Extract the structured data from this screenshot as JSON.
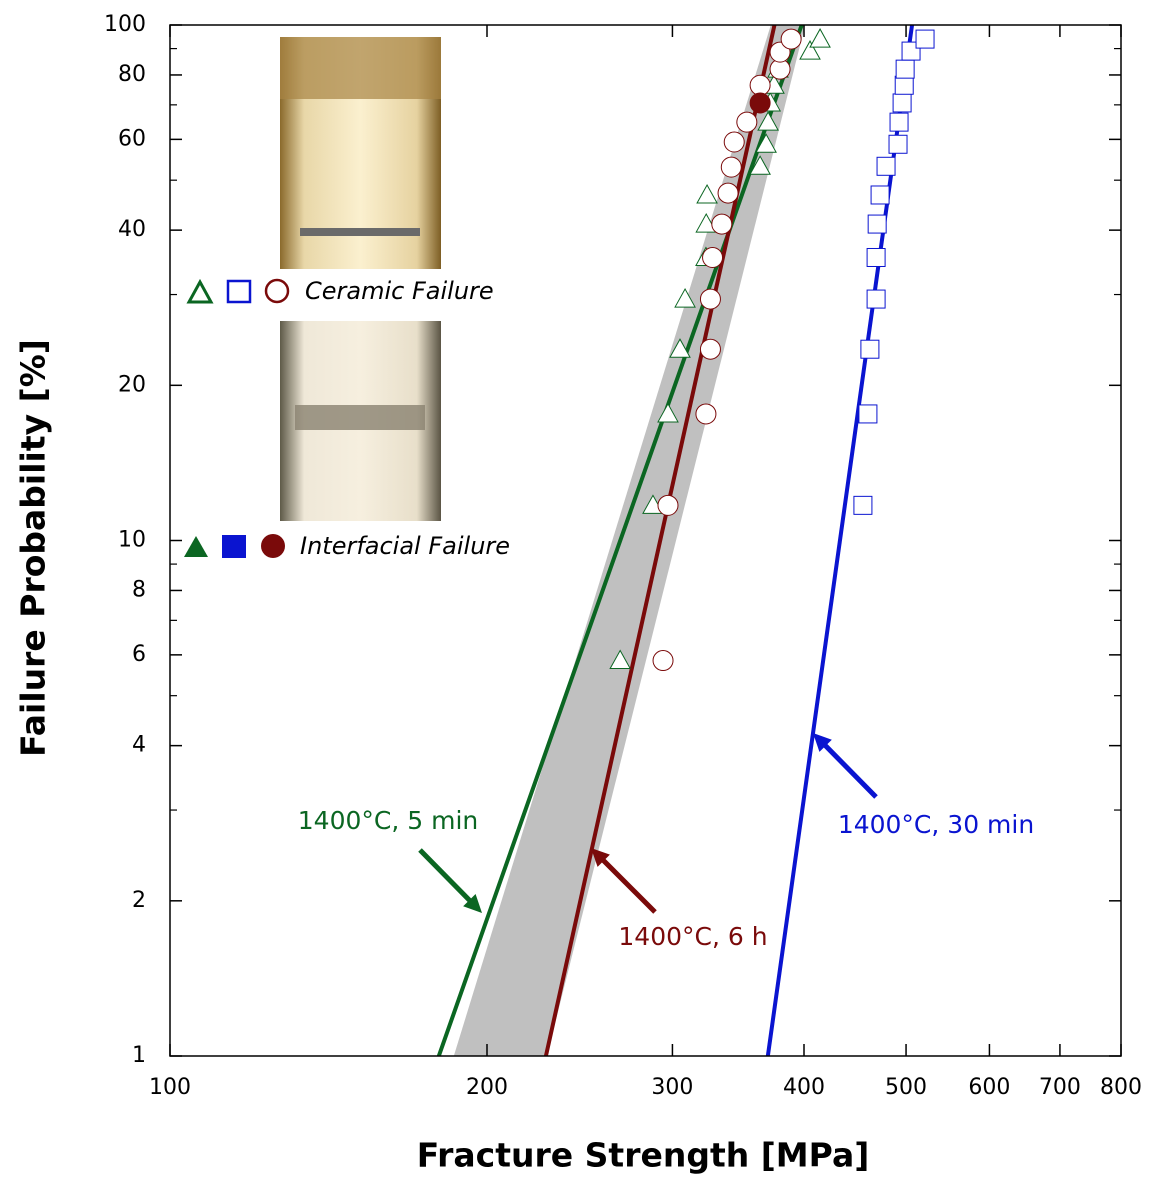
{
  "chart_data": {
    "type": "scatter",
    "x_label": "Fracture Strength [MPa]",
    "y_label": "Failure Probability [%]",
    "xscale": "log",
    "yscale": "log",
    "xlim": [
      100,
      800
    ],
    "ylim": [
      1,
      100
    ],
    "xticks": [
      100,
      200,
      300,
      400,
      500,
      600,
      700,
      800
    ],
    "yticks": [
      1,
      2,
      4,
      6,
      8,
      10,
      20,
      40,
      60,
      80,
      100
    ],
    "yminorticks": [
      3,
      5,
      7,
      9,
      30,
      50,
      70,
      90
    ],
    "band": {
      "color": "#c0c0c0",
      "x": [
        186,
        372,
        401,
        228
      ],
      "values": [
        1,
        100,
        100,
        1
      ]
    },
    "fits": [
      {
        "color": "#0b6622",
        "x": [
          180,
          398
        ],
        "values": [
          1,
          100
        ]
      },
      {
        "color": "#7a0a0a",
        "x": [
          227.5,
          375
        ],
        "values": [
          1,
          100
        ]
      },
      {
        "color": "#0a14d0",
        "x": [
          369.6,
          506.6
        ],
        "values": [
          1,
          100
        ]
      }
    ],
    "series": [
      {
        "marker": "triangle",
        "filled": false,
        "color": "#0b6622",
        "x": [
          267.6,
          287.5,
          297.1,
          305,
          308.4,
          322.8,
          323,
          323.6,
          363.4,
          368.2,
          369.8,
          371.5,
          374.6,
          377.9,
          405.3,
          414.3
        ],
        "values": [
          5.85,
          11.7,
          17.6,
          23.5,
          29.4,
          35.4,
          41.1,
          46.8,
          53.2,
          58.7,
          64.8,
          70.6,
          76.4,
          82.1,
          89.0,
          93.9
        ]
      },
      {
        "marker": "circle",
        "filled": false,
        "color": "#7a0a0a",
        "x": [
          293.9,
          297.1,
          322.8,
          326,
          326,
          327.5,
          334.2,
          338.8,
          341.2,
          343.4,
          353,
          363.4,
          379.6,
          379.6,
          388.9
        ],
        "values": [
          5.85,
          11.7,
          17.6,
          23.5,
          29.4,
          35.4,
          41.1,
          47.2,
          53.0,
          59.3,
          64.8,
          76.4,
          82.1,
          88.6,
          93.9
        ]
      },
      {
        "marker": "circle",
        "filled": true,
        "color": "#7a0a0a",
        "x": [
          363.4
        ],
        "values": [
          70.6
        ]
      },
      {
        "marker": "square",
        "filled": false,
        "color": "#0a14d0",
        "x": [
          455,
          460,
          462,
          468.3,
          468.3,
          469.4,
          472.4,
          478.6,
          491.3,
          492.4,
          495.7,
          498,
          499,
          505.5,
          521.2
        ],
        "values": [
          11.7,
          17.6,
          23.5,
          29.4,
          35.4,
          41.1,
          46.8,
          53.2,
          58.7,
          64.8,
          70.6,
          76.4,
          82.1,
          89.0,
          93.9
        ]
      }
    ],
    "annotations": [
      {
        "text": "1400°C, 5 min",
        "color": "#0b6622"
      },
      {
        "text": "1400°C, 6 h",
        "color": "#7a0a0a"
      },
      {
        "text": "1400°C, 30 min",
        "color": "#0a14d0"
      }
    ],
    "legend": {
      "open": "Ceramic Failure",
      "filled": "Interfacial Failure"
    }
  }
}
